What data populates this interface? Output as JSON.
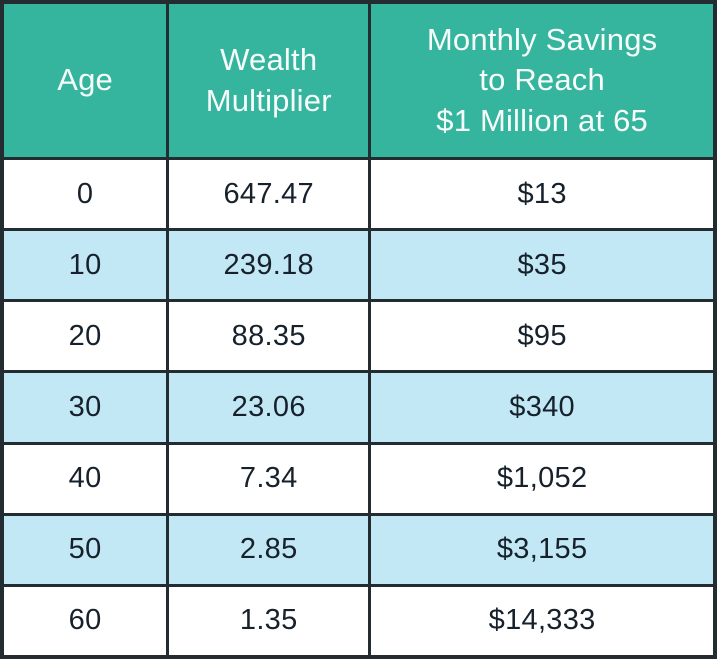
{
  "chart_data": {
    "type": "table",
    "title": "",
    "columns": [
      "Age",
      "Wealth Multiplier",
      "Monthly Savings to Reach $1 Million at 65"
    ],
    "rows": [
      [
        0,
        647.47,
        "$13"
      ],
      [
        10,
        239.18,
        "$35"
      ],
      [
        20,
        88.35,
        "$95"
      ],
      [
        30,
        23.06,
        "$340"
      ],
      [
        40,
        7.34,
        "$1,052"
      ],
      [
        50,
        2.85,
        "$3,155"
      ],
      [
        60,
        1.35,
        "$14,333"
      ]
    ]
  },
  "table": {
    "headers": {
      "age": "Age",
      "multiplier": "Wealth\nMultiplier",
      "savings": "Monthly Savings\nto Reach\n$1 Million at 65"
    },
    "rows": [
      {
        "age": "0",
        "multiplier": "647.47",
        "savings": "$13"
      },
      {
        "age": "10",
        "multiplier": "239.18",
        "savings": "$35"
      },
      {
        "age": "20",
        "multiplier": "88.35",
        "savings": "$95"
      },
      {
        "age": "30",
        "multiplier": "23.06",
        "savings": "$340"
      },
      {
        "age": "40",
        "multiplier": "7.34",
        "savings": "$1,052"
      },
      {
        "age": "50",
        "multiplier": "2.85",
        "savings": "$3,155"
      },
      {
        "age": "60",
        "multiplier": "1.35",
        "savings": "$14,333"
      }
    ]
  },
  "colors": {
    "header_bg": "#35b49e",
    "row_alt_bg": "#c2e8f5",
    "row_bg": "#ffffff",
    "border": "#232c31",
    "header_text": "#f7fcfa",
    "body_text": "#17212b"
  }
}
